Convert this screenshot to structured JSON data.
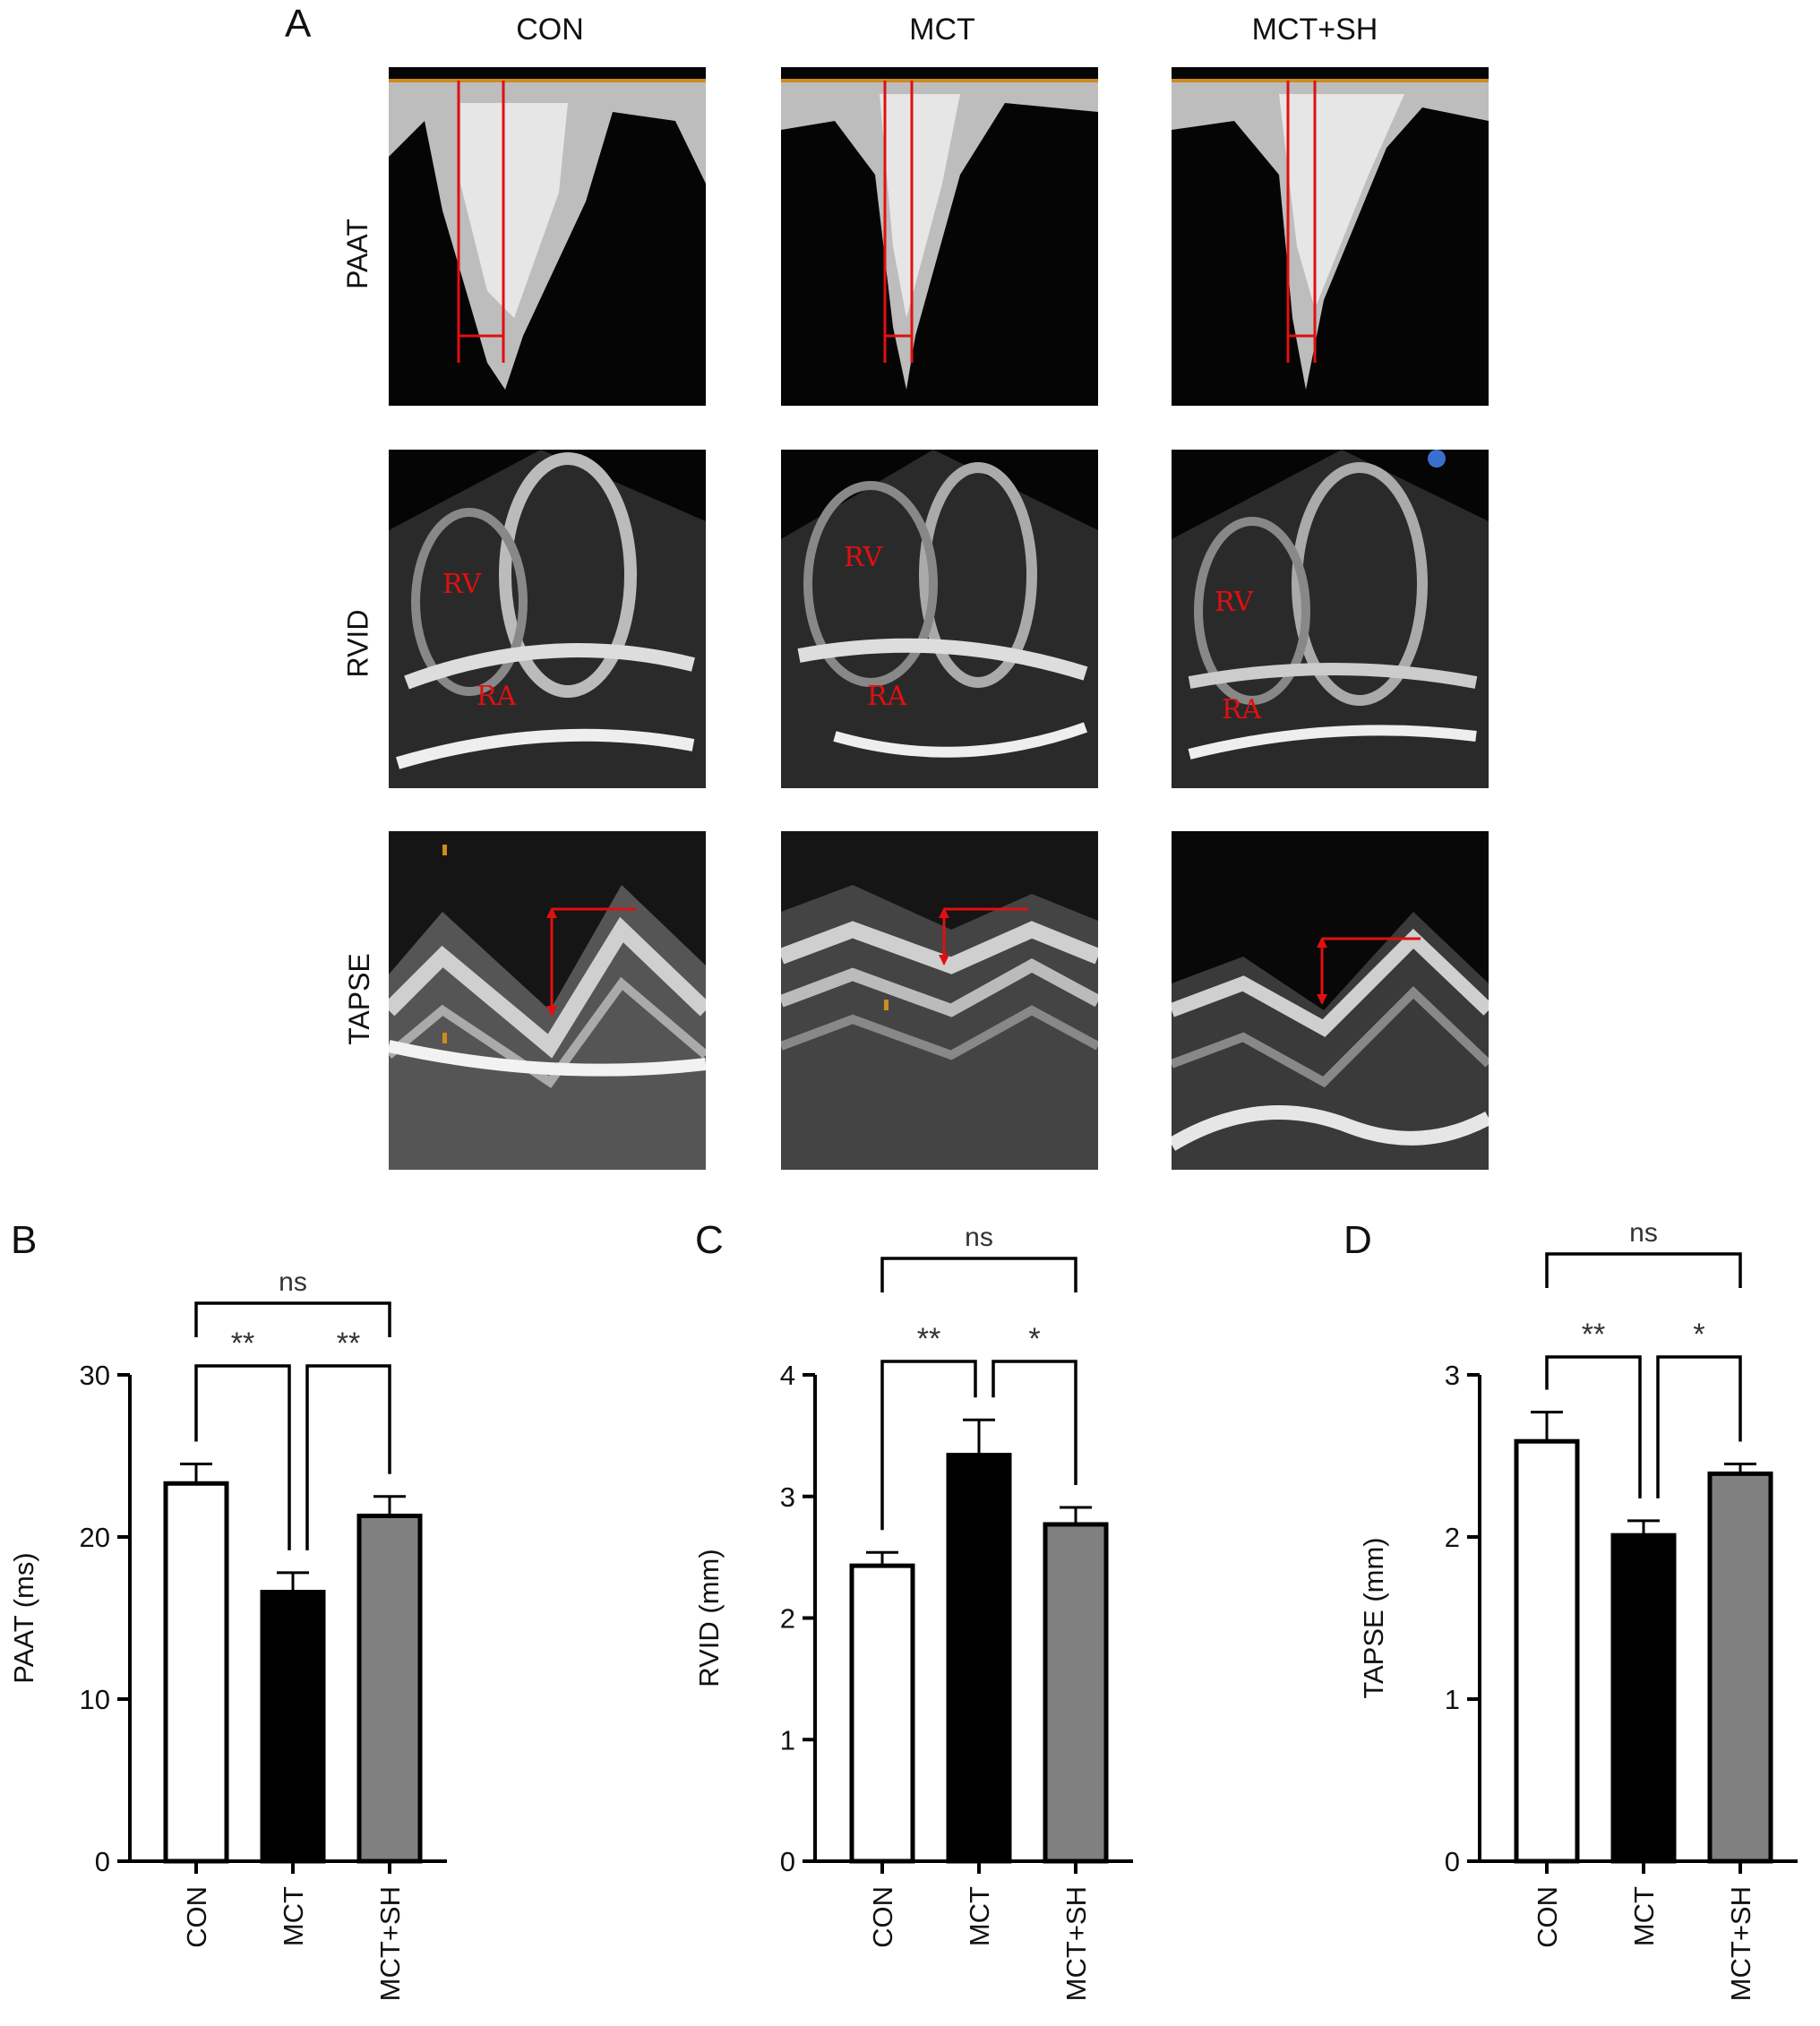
{
  "panel_a": {
    "letter": "A",
    "columns": [
      "CON",
      "MCT",
      "MCT+SH"
    ],
    "rows": [
      "PAAT",
      "RVID",
      "TAPSE"
    ],
    "anatomy_labels": {
      "rv": "RV",
      "ra": "RA"
    },
    "colors": {
      "marker": "#e01010",
      "baseline": "#d08a20"
    }
  },
  "chart_data": [
    {
      "type": "bar",
      "panel": "B",
      "categories": [
        "CON",
        "MCT",
        "MCT+SH"
      ],
      "values": [
        23.3,
        16.6,
        21.3
      ],
      "errors": [
        1.2,
        1.2,
        1.2
      ],
      "ylabel": "PAAT (ms)",
      "ylim": [
        0,
        30
      ],
      "yticks": [
        0,
        10,
        20,
        30
      ],
      "bar_colors": [
        "#ffffff",
        "#000000",
        "#808080"
      ],
      "comparisons": [
        {
          "from": 0,
          "to": 1,
          "label": "**"
        },
        {
          "from": 1,
          "to": 2,
          "label": "**"
        },
        {
          "from": 0,
          "to": 2,
          "label": "ns"
        }
      ]
    },
    {
      "type": "bar",
      "panel": "C",
      "categories": [
        "CON",
        "MCT",
        "MCT+SH"
      ],
      "values": [
        2.43,
        3.34,
        2.77
      ],
      "errors": [
        0.11,
        0.29,
        0.14
      ],
      "ylabel": "RVID (mm)",
      "ylim": [
        0,
        4
      ],
      "yticks": [
        0,
        1,
        2,
        3,
        4
      ],
      "bar_colors": [
        "#ffffff",
        "#000000",
        "#808080"
      ],
      "comparisons": [
        {
          "from": 0,
          "to": 1,
          "label": "**"
        },
        {
          "from": 1,
          "to": 2,
          "label": "*"
        },
        {
          "from": 0,
          "to": 2,
          "label": "ns"
        }
      ]
    },
    {
      "type": "bar",
      "panel": "D",
      "categories": [
        "CON",
        "MCT",
        "MCT+SH"
      ],
      "values": [
        2.59,
        2.01,
        2.39
      ],
      "errors": [
        0.18,
        0.09,
        0.06
      ],
      "ylabel": "TAPSE (mm)",
      "ylim": [
        0,
        3
      ],
      "yticks": [
        0,
        1,
        2,
        3
      ],
      "bar_colors": [
        "#ffffff",
        "#000000",
        "#808080"
      ],
      "comparisons": [
        {
          "from": 0,
          "to": 1,
          "label": "**"
        },
        {
          "from": 1,
          "to": 2,
          "label": "*"
        },
        {
          "from": 0,
          "to": 2,
          "label": "ns"
        }
      ]
    }
  ]
}
